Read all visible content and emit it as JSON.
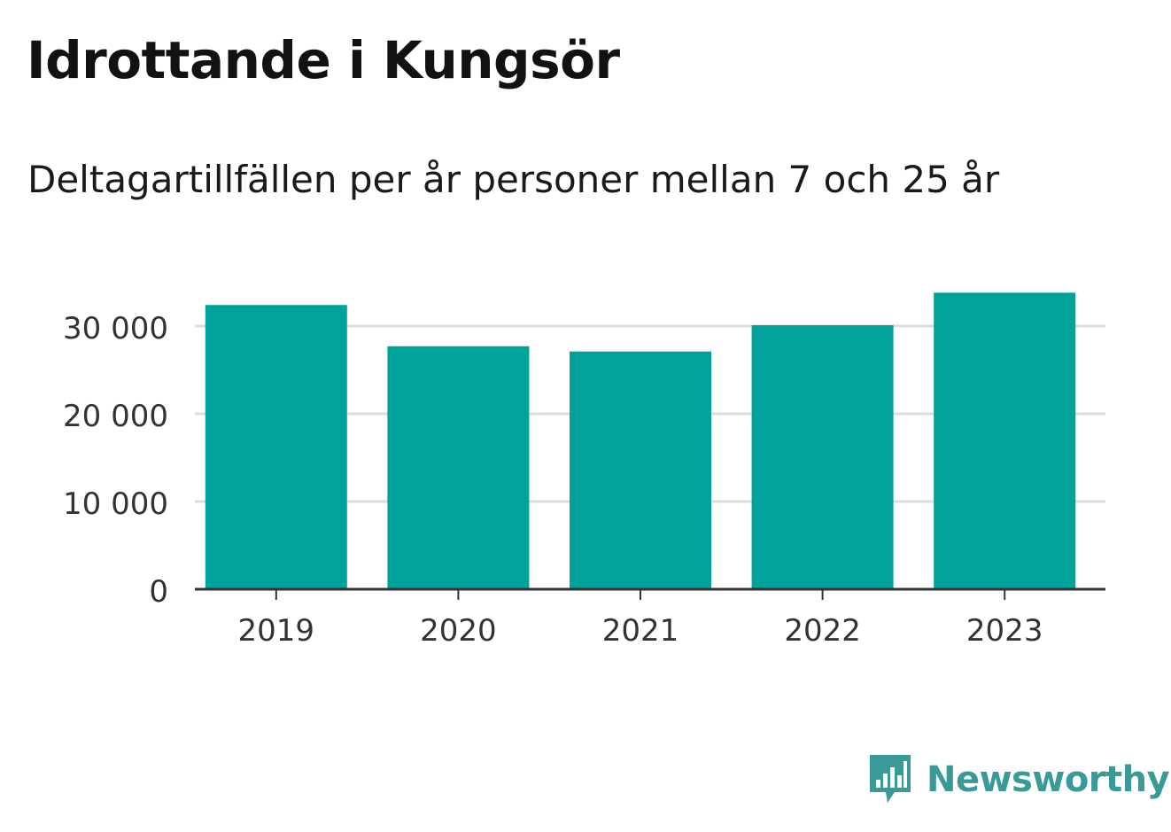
{
  "header": {
    "title": "Idrottande i Kungsör",
    "subtitle": "Deltagartillfällen per år personer mellan 7 och 25 år"
  },
  "branding": {
    "logo_text": "Newsworthy",
    "logo_color": "#3a9a98"
  },
  "chart_data": {
    "type": "bar",
    "title": "Idrottande i Kungsör",
    "subtitle": "Deltagartillfällen per år personer mellan 7 och 25 år",
    "categories": [
      "2019",
      "2020",
      "2021",
      "2022",
      "2023"
    ],
    "values": [
      32400,
      27700,
      27100,
      30100,
      33800
    ],
    "ylim": [
      0,
      35000
    ],
    "yticks": [
      0,
      10000,
      20000,
      30000
    ],
    "ytick_labels": [
      "0",
      "10 000",
      "20 000",
      "30 000"
    ],
    "xlabel": "",
    "ylabel": "",
    "grid": true,
    "bar_color": "#00a399",
    "grid_color": "#dddddd",
    "axis_color": "#333333"
  }
}
